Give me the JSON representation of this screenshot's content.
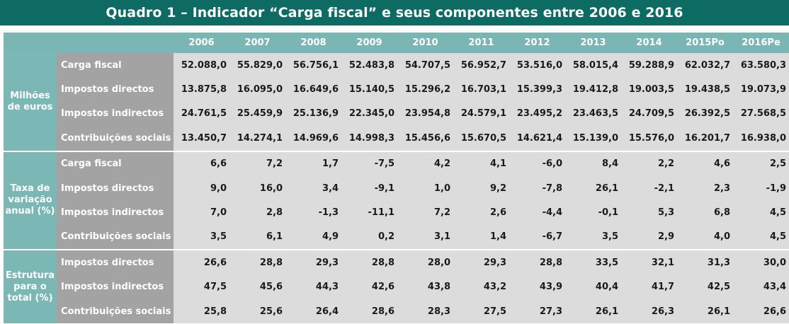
{
  "title": "Quadro 1 – Indicador “Carga fiscal” e seus componentes entre 2006 e 2016",
  "years": [
    "2006",
    "2007",
    "2008",
    "2009",
    "2010",
    "2011",
    "2012",
    "2013",
    "2014",
    "2015Po",
    "2016Pe"
  ],
  "sections": [
    {
      "label": "Milhões de euros",
      "rows": [
        {
          "label": "Carga fiscal",
          "values": [
            "52.088,0",
            "55.829,0",
            "56.756,1",
            "52.483,8",
            "54.707,5",
            "56.952,7",
            "53.516,0",
            "58.015,4",
            "59.288,9",
            "62.032,7",
            "63.580,3"
          ]
        },
        {
          "label": "Impostos directos",
          "values": [
            "13.875,8",
            "16.095,0",
            "16.649,6",
            "15.140,5",
            "15.296,2",
            "16.703,1",
            "15.399,3",
            "19.412,8",
            "19.003,5",
            "19.438,5",
            "19.073,9"
          ]
        },
        {
          "label": "Impostos indirectos",
          "values": [
            "24.761,5",
            "25.459,9",
            "25.136,9",
            "22.345,0",
            "23.954,8",
            "24.579,1",
            "23.495,2",
            "23.463,5",
            "24.709,5",
            "26.392,5",
            "27.568,5"
          ]
        },
        {
          "label": "Contribuições sociais",
          "values": [
            "13.450,7",
            "14.274,1",
            "14.969,6",
            "14.998,3",
            "15.456,6",
            "15.670,5",
            "14.621,4",
            "15.139,0",
            "15.576,0",
            "16.201,7",
            "16.938,0"
          ]
        }
      ]
    },
    {
      "label": "Taxa de variação anual (%)",
      "rows": [
        {
          "label": "Carga fiscal",
          "values": [
            "6,6",
            "7,2",
            "1,7",
            "-7,5",
            "4,2",
            "4,1",
            "-6,0",
            "8,4",
            "2,2",
            "4,6",
            "2,5"
          ]
        },
        {
          "label": "Impostos directos",
          "values": [
            "9,0",
            "16,0",
            "3,4",
            "-9,1",
            "1,0",
            "9,2",
            "-7,8",
            "26,1",
            "-2,1",
            "2,3",
            "-1,9"
          ]
        },
        {
          "label": "Impostos indirectos",
          "values": [
            "7,0",
            "2,8",
            "-1,3",
            "-11,1",
            "7,2",
            "2,6",
            "-4,4",
            "-0,1",
            "5,3",
            "6,8",
            "4,5"
          ]
        },
        {
          "label": "Contribuições sociais",
          "values": [
            "3,5",
            "6,1",
            "4,9",
            "0,2",
            "3,1",
            "1,4",
            "-6,7",
            "3,5",
            "2,9",
            "4,0",
            "4,5"
          ]
        }
      ]
    },
    {
      "label": "Estrutura para o total (%)",
      "rows": [
        {
          "label": "Impostos directos",
          "values": [
            "26,6",
            "28,8",
            "29,3",
            "28,8",
            "28,0",
            "29,3",
            "28,8",
            "33,5",
            "32,1",
            "31,3",
            "30,0"
          ]
        },
        {
          "label": "Impostos indirectos",
          "values": [
            "47,5",
            "45,6",
            "44,3",
            "42,6",
            "43,8",
            "43,2",
            "43,9",
            "40,4",
            "41,7",
            "42,5",
            "43,4"
          ]
        },
        {
          "label": "Contribuições sociais",
          "values": [
            "25,8",
            "25,6",
            "26,4",
            "28,6",
            "28,3",
            "27,5",
            "27,3",
            "26,1",
            "26,3",
            "26,1",
            "26,6"
          ]
        }
      ]
    }
  ]
}
